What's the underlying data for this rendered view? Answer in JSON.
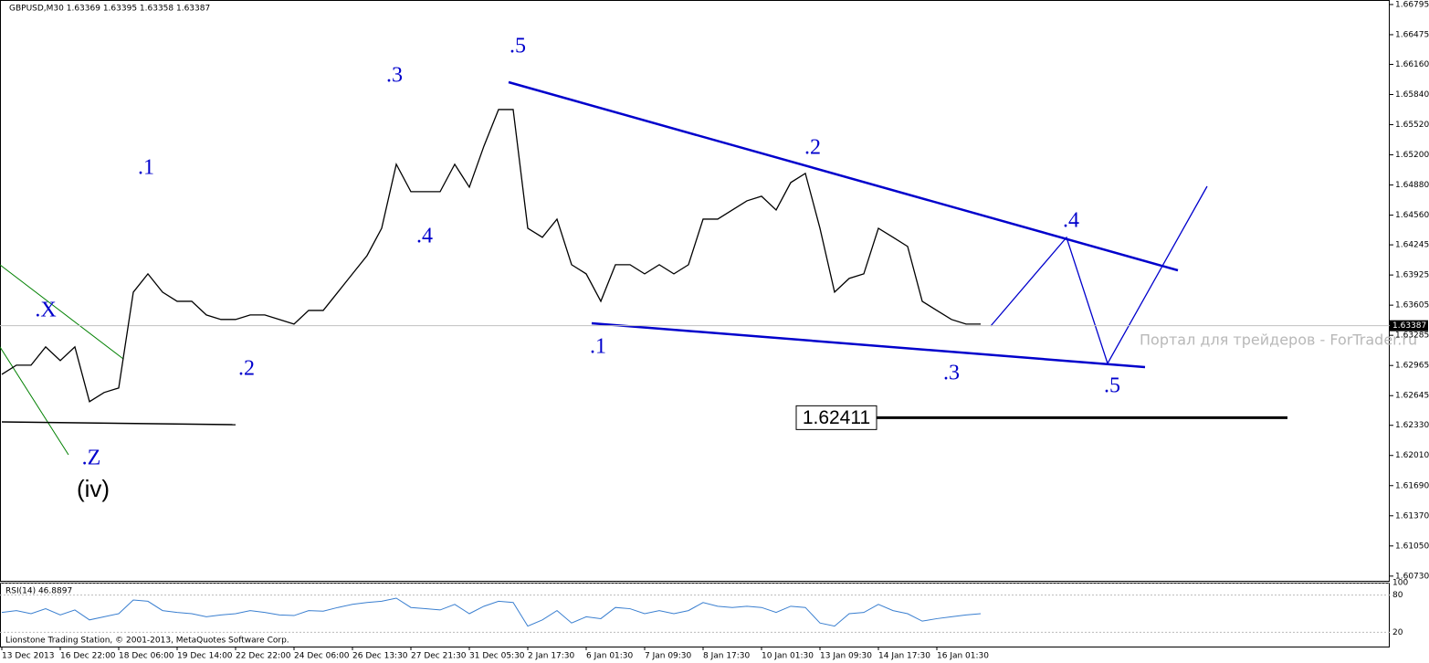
{
  "chart_data": {
    "type": "line",
    "title": "GBPUSD,M30  1.63369 1.63395 1.63358 1.63387",
    "categories": [
      "13 Dec 2013",
      null,
      null,
      null,
      "16 Dec 22:00",
      null,
      null,
      null,
      "18 Dec 06:00",
      null,
      null,
      null,
      "19 Dec 14:00",
      null,
      null,
      null,
      "22 Dec 22:00",
      null,
      null,
      null,
      "24 Dec 06:00",
      null,
      null,
      null,
      "26 Dec 13:30",
      null,
      null,
      null,
      "27 Dec 21:30",
      null,
      null,
      null,
      "31 Dec 05:30",
      null,
      null,
      null,
      "2 Jan 17:30",
      null,
      null,
      null,
      "6 Jan 01:30",
      null,
      null,
      null,
      "7 Jan 09:30",
      null,
      null,
      null,
      "8 Jan 17:30",
      null,
      null,
      null,
      "10 Jan 01:30",
      null,
      null,
      null,
      "13 Jan 09:30",
      null,
      null,
      null,
      "14 Jan 17:30",
      null,
      null,
      null,
      "16 Jan 01:30",
      null,
      null,
      null
    ],
    "series": [
      {
        "name": "GBPUSD",
        "color": "#000000",
        "values": [
          1.62871,
          1.62968,
          1.62968,
          1.63162,
          1.63017,
          1.63162,
          1.62581,
          1.62678,
          1.62726,
          1.63743,
          1.63937,
          1.63743,
          1.63646,
          1.63646,
          1.63501,
          1.63453,
          1.63453,
          1.63501,
          1.63501,
          1.63453,
          1.63404,
          1.63549,
          1.63549,
          1.63743,
          1.63937,
          1.64131,
          1.64421,
          1.651,
          1.64809,
          1.64809,
          1.64809,
          1.651,
          1.64857,
          1.65293,
          1.65681,
          1.65681,
          1.64421,
          1.64325,
          1.64518,
          1.64034,
          1.63937,
          1.63646,
          1.64034,
          1.64034,
          1.63937,
          1.64034,
          1.63937,
          1.64034,
          1.64518,
          1.64518,
          1.64615,
          1.64712,
          1.64761,
          1.64615,
          1.64906,
          1.65003,
          1.64421,
          1.63743,
          1.63889,
          1.63937,
          1.64421,
          1.64325,
          1.64228,
          1.63646,
          1.63549,
          1.63453,
          1.63404,
          1.63404
        ]
      }
    ],
    "ylim": [
      1.6068,
      1.66843
    ],
    "yticks": [
      {
        "value": 1.66795,
        "label": "1.66795"
      },
      {
        "value": 1.66475,
        "label": "1.66475"
      },
      {
        "value": 1.6616,
        "label": "1.66160"
      },
      {
        "value": 1.6584,
        "label": "1.65840"
      },
      {
        "value": 1.6552,
        "label": "1.65520"
      },
      {
        "value": 1.652,
        "label": "1.65200"
      },
      {
        "value": 1.6488,
        "label": "1.64880"
      },
      {
        "value": 1.6456,
        "label": "1.64560"
      },
      {
        "value": 1.64245,
        "label": "1.64245"
      },
      {
        "value": 1.63925,
        "label": "1.63925"
      },
      {
        "value": 1.63605,
        "label": "1.63605"
      },
      {
        "value": 1.63285,
        "label": "1.63285"
      },
      {
        "value": 1.62965,
        "label": "1.62965"
      },
      {
        "value": 1.62645,
        "label": "1.62645"
      },
      {
        "value": 1.6233,
        "label": "1.62330"
      },
      {
        "value": 1.6201,
        "label": "1.62010"
      },
      {
        "value": 1.6169,
        "label": "1.61690"
      },
      {
        "value": 1.6137,
        "label": "1.61370"
      },
      {
        "value": 1.6105,
        "label": "1.61050"
      },
      {
        "value": 1.6073,
        "label": "1.60730"
      }
    ],
    "current_price": 1.63387,
    "level": 1.62411,
    "annotations": [
      ".X",
      ".Z",
      "(iv)",
      ".1",
      ".2",
      ".3",
      ".4",
      ".5",
      ".1",
      ".2",
      ".3",
      ".4",
      ".5"
    ],
    "watermark": "Портал для трейдеров - ForTrader.ru",
    "indicator": {
      "title": "RSI(14) 46.8897",
      "color": "#3a7fd0",
      "values": [
        52,
        55,
        50,
        58,
        48,
        56,
        40,
        45,
        50,
        72,
        70,
        55,
        52,
        50,
        45,
        48,
        50,
        55,
        52,
        48,
        47,
        55,
        54,
        60,
        65,
        68,
        70,
        75,
        60,
        58,
        56,
        65,
        50,
        62,
        70,
        68,
        30,
        40,
        55,
        35,
        45,
        42,
        60,
        58,
        50,
        55,
        50,
        55,
        68,
        62,
        60,
        62,
        60,
        52,
        62,
        60,
        35,
        30,
        50,
        52,
        65,
        55,
        50,
        38,
        42,
        45,
        48,
        50
      ],
      "ylim": [
        0,
        100
      ],
      "yticks": [
        100,
        80,
        20
      ]
    },
    "footer": "Lionstone Trading Station, © 2001-2013, MetaQuotes Software Corp."
  }
}
